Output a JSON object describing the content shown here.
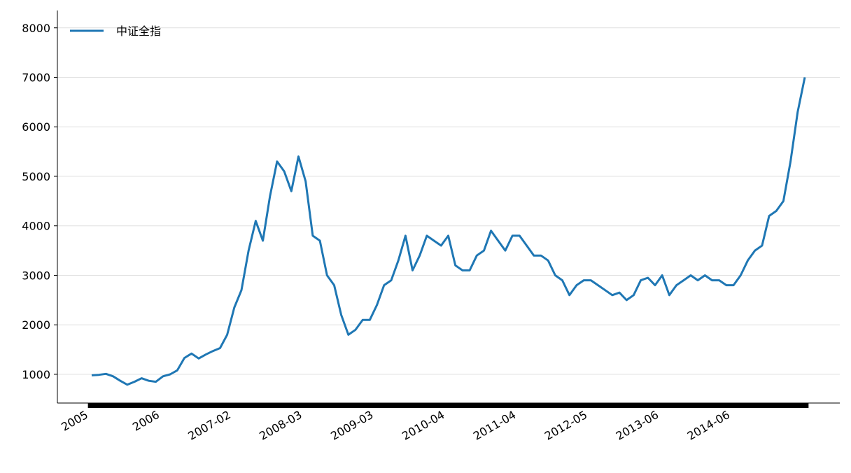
{
  "chart_data": {
    "type": "line",
    "categories": [
      "2005",
      null,
      null,
      null,
      null,
      null,
      null,
      null,
      null,
      null,
      "2006",
      null,
      null,
      null,
      null,
      null,
      null,
      null,
      null,
      null,
      "2007-02",
      null,
      null,
      null,
      null,
      null,
      null,
      null,
      null,
      null,
      "2008-03",
      null,
      null,
      null,
      null,
      null,
      null,
      null,
      null,
      null,
      "2009-03",
      null,
      null,
      null,
      null,
      null,
      null,
      null,
      null,
      null,
      "2010-04",
      null,
      null,
      null,
      null,
      null,
      null,
      null,
      null,
      null,
      "2011-04",
      null,
      null,
      null,
      null,
      null,
      null,
      null,
      null,
      null,
      "2012-05",
      null,
      null,
      null,
      null,
      null,
      null,
      null,
      null,
      null,
      "2013-06",
      null,
      null,
      null,
      null,
      null,
      null,
      null,
      null,
      null,
      "2014-06",
      null,
      null,
      null,
      null,
      null,
      null,
      null,
      null,
      null,
      null
    ],
    "series": [
      {
        "name": "中证全指",
        "color": "#1f77b4",
        "values": [
          980,
          990,
          1010,
          960,
          870,
          790,
          850,
          920,
          870,
          850,
          960,
          1000,
          1080,
          1330,
          1420,
          1320,
          1400,
          1470,
          1530,
          1800,
          2350,
          2700,
          3500,
          4100,
          3700,
          4600,
          5300,
          5100,
          4700,
          5400,
          4900,
          3800,
          3700,
          3000,
          2800,
          2200,
          1800,
          1900,
          2100,
          2100,
          2400,
          2800,
          2900,
          3300,
          3800,
          3100,
          3400,
          3800,
          3700,
          3600,
          3800,
          3200,
          3100,
          3100,
          3400,
          3500,
          3900,
          3700,
          3500,
          3800,
          3800,
          3600,
          3400,
          3400,
          3300,
          3000,
          2900,
          2600,
          2800,
          2900,
          2900,
          2800,
          2700,
          2600,
          2650,
          2500,
          2600,
          2900,
          2950,
          2800,
          3000,
          2600,
          2800,
          2900,
          3000,
          2900,
          3000,
          2900,
          2900,
          2800,
          2800,
          3000,
          3300,
          3500,
          3600,
          4200,
          4300,
          4500,
          5300,
          6300,
          7000
        ]
      }
    ],
    "ylim": [
      420,
      8350
    ],
    "yticks": [
      1000,
      2000,
      3000,
      4000,
      5000,
      6000,
      7000,
      8000
    ],
    "grid": true,
    "legend": "upper left"
  }
}
